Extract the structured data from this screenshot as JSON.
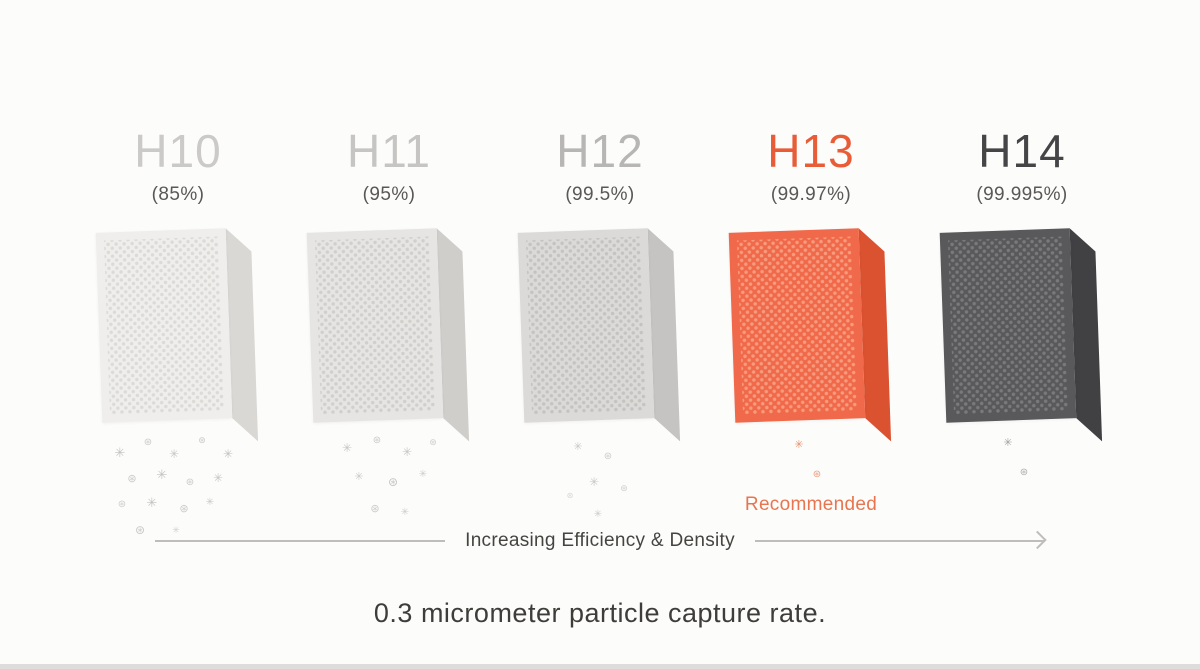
{
  "caption": "0.3 micrometer particle capture rate.",
  "axis": {
    "label": "Increasing Efficiency & Density"
  },
  "recommended_label": "Recommended",
  "accent_color": "#E85C38",
  "glyphs": [
    "✳",
    "⊛"
  ],
  "columns": [
    {
      "grade": "H10",
      "rate_label": "(85%)",
      "rate_percent": 85,
      "title_color": "#CBCAC8",
      "particle_color": "#B5B4B1",
      "colors": {
        "front": "#EFEEEC",
        "dot": "#DBDAD7",
        "side": "#D9D8D5"
      },
      "particles": [
        [
          -58,
          14,
          13,
          0.8
        ],
        [
          -30,
          6,
          10,
          0.7
        ],
        [
          -4,
          16,
          12,
          0.75
        ],
        [
          24,
          4,
          9,
          0.7
        ],
        [
          50,
          16,
          12,
          0.8
        ],
        [
          -46,
          42,
          11,
          0.7
        ],
        [
          -16,
          36,
          13,
          0.8
        ],
        [
          12,
          46,
          10,
          0.7
        ],
        [
          40,
          40,
          12,
          0.75
        ],
        [
          -56,
          68,
          10,
          0.65
        ],
        [
          -26,
          64,
          13,
          0.8
        ],
        [
          6,
          72,
          11,
          0.7
        ],
        [
          32,
          66,
          10,
          0.7
        ],
        [
          -38,
          92,
          12,
          0.7
        ],
        [
          -2,
          94,
          9,
          0.6
        ]
      ]
    },
    {
      "grade": "H11",
      "rate_label": "(95%)",
      "rate_percent": 95,
      "title_color": "#C6C5C3",
      "particle_color": "#B5B4B1",
      "colors": {
        "front": "#E6E5E3",
        "dot": "#D0CFCC",
        "side": "#CFCECB"
      },
      "particles": [
        [
          -42,
          10,
          12,
          0.75
        ],
        [
          -12,
          4,
          10,
          0.7
        ],
        [
          18,
          14,
          12,
          0.75
        ],
        [
          44,
          6,
          9,
          0.65
        ],
        [
          -30,
          40,
          11,
          0.7
        ],
        [
          4,
          44,
          12,
          0.75
        ],
        [
          34,
          38,
          10,
          0.65
        ],
        [
          -14,
          72,
          11,
          0.7
        ],
        [
          16,
          76,
          10,
          0.65
        ]
      ]
    },
    {
      "grade": "H12",
      "rate_label": "(99.5%)",
      "rate_percent": 99.5,
      "title_color": "#B7B6B4",
      "particle_color": "#B3B2AF",
      "colors": {
        "front": "#DBDAD8",
        "dot": "#C4C3C0",
        "side": "#C5C4C2"
      },
      "particles": [
        [
          -22,
          10,
          11,
          0.7
        ],
        [
          8,
          20,
          10,
          0.65
        ],
        [
          -6,
          44,
          12,
          0.7
        ],
        [
          24,
          52,
          9,
          0.6
        ],
        [
          -2,
          78,
          10,
          0.65
        ],
        [
          -30,
          60,
          8,
          0.5
        ]
      ]
    },
    {
      "grade": "H13",
      "rate_label": "(99.97%)",
      "rate_percent": 99.97,
      "title_color": "#E85C38",
      "particle_color": "#E8855C",
      "colors": {
        "front": "#F0694A",
        "dot": "#F79B7D",
        "side": "#DB5231"
      },
      "recommended": true,
      "particles": [
        [
          -12,
          8,
          11,
          0.9
        ],
        [
          6,
          38,
          10,
          0.8
        ]
      ]
    },
    {
      "grade": "H14",
      "rate_label": "(99.995%)",
      "rate_percent": 99.995,
      "title_color": "#454547",
      "particle_color": "#8A8A8C",
      "colors": {
        "front": "#59595B",
        "dot": "#7A7A7C",
        "side": "#414144"
      },
      "particles": [
        [
          -14,
          6,
          11,
          0.8
        ],
        [
          2,
          36,
          10,
          0.7
        ]
      ]
    }
  ]
}
